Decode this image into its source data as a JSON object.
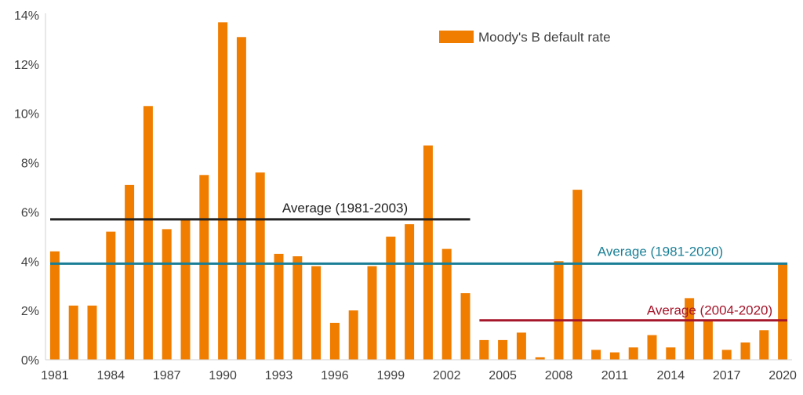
{
  "chart_data": {
    "type": "bar",
    "x": [
      1981,
      1982,
      1983,
      1984,
      1985,
      1986,
      1987,
      1988,
      1989,
      1990,
      1991,
      1992,
      1993,
      1994,
      1995,
      1996,
      1997,
      1998,
      1999,
      2000,
      2001,
      2002,
      2003,
      2004,
      2005,
      2006,
      2007,
      2008,
      2009,
      2010,
      2011,
      2012,
      2013,
      2014,
      2015,
      2016,
      2017,
      2018,
      2019,
      2020
    ],
    "values": [
      4.4,
      2.2,
      2.2,
      5.2,
      7.1,
      10.3,
      5.3,
      5.7,
      7.5,
      13.7,
      13.1,
      7.6,
      4.3,
      4.2,
      3.8,
      1.5,
      2.0,
      3.8,
      5.0,
      5.5,
      8.7,
      4.5,
      2.7,
      0.8,
      0.8,
      1.1,
      0.1,
      4.0,
      6.9,
      0.4,
      0.3,
      0.5,
      1.0,
      0.5,
      2.5,
      1.6,
      0.4,
      0.7,
      1.2,
      3.9
    ],
    "x_tick_labels": [
      "1981",
      "1984",
      "1987",
      "1990",
      "1993",
      "1996",
      "1999",
      "2002",
      "2005",
      "2008",
      "2011",
      "2014",
      "2017",
      "2020"
    ],
    "y_tick_labels": [
      "0%",
      "2%",
      "4%",
      "6%",
      "8%",
      "10%",
      "12%",
      "14%"
    ],
    "y_ticks": [
      0,
      2,
      4,
      6,
      8,
      10,
      12,
      14
    ],
    "ylim": [
      0,
      14
    ],
    "legend": {
      "label": "Moody's B default rate",
      "position": "top-right"
    },
    "bar_color": "#f07d00",
    "averages": [
      {
        "label": "Average (1981-2003)",
        "value": 5.7,
        "start": 1981,
        "end": 2003,
        "color": "#222222"
      },
      {
        "label": "Average (1981-2020)",
        "value": 3.9,
        "start": 1981,
        "end": 2020,
        "color": "#1a7f96"
      },
      {
        "label": "Average (2004-2020)",
        "value": 1.6,
        "start": 2004,
        "end": 2020,
        "color": "#a5162b"
      }
    ],
    "grid": false
  }
}
